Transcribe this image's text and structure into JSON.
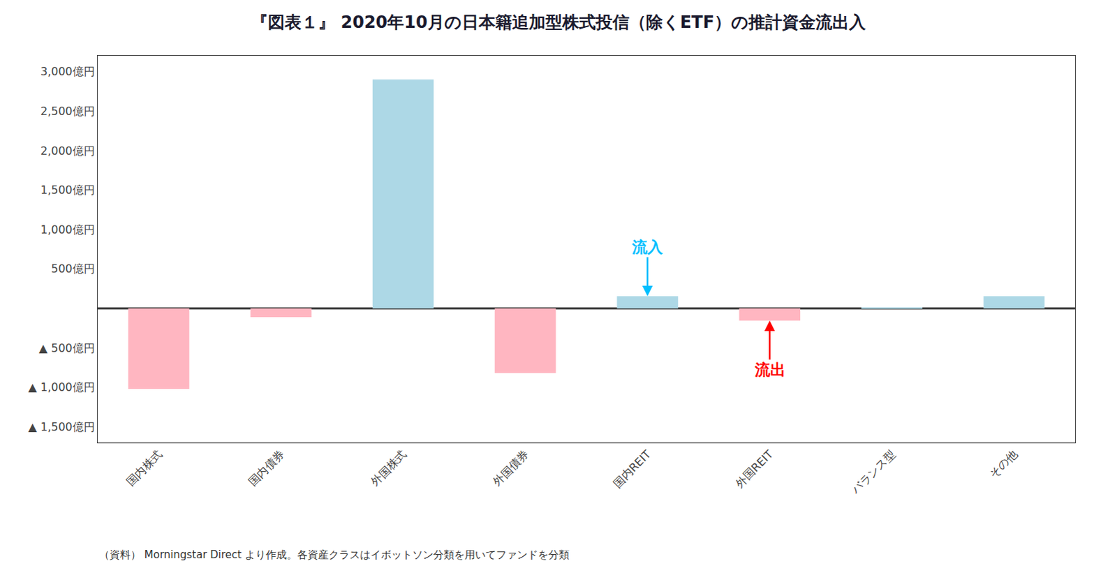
{
  "chart_data": {
    "type": "bar",
    "title": "『図表１』 2020年10月の日本籍追加型株式投信（除くETF）の推計資金流出入",
    "categories": [
      "国内株式",
      "国内債券",
      "外国株式",
      "外国債券",
      "国内REIT",
      "外国REIT",
      "バランス型",
      "その他"
    ],
    "values": [
      -1020,
      -110,
      2900,
      -820,
      155,
      -155,
      5,
      155
    ],
    "colors": [
      "#FFB6C1",
      "#FFB6C1",
      "#ADD8E6",
      "#FFB6C1",
      "#ADD8E6",
      "#FFB6C1",
      "#ADD8E6",
      "#ADD8E6"
    ],
    "ylim": [
      -1700,
      3200
    ],
    "yticks": [
      {
        "value": -1500,
        "label": "▲ 1,500億円"
      },
      {
        "value": -1000,
        "label": "▲ 1,000億円"
      },
      {
        "value": -500,
        "label": "▲ 500億円"
      },
      {
        "value": 500,
        "label": "500億円"
      },
      {
        "value": 1000,
        "label": "1,000億円"
      },
      {
        "value": 1500,
        "label": "1,500億円"
      },
      {
        "value": 2000,
        "label": "2,000億円"
      },
      {
        "value": 2500,
        "label": "2,500億円"
      },
      {
        "value": 3000,
        "label": "3,000億円"
      }
    ],
    "grid": false,
    "annotations": [
      {
        "text": "流入",
        "category": "国内REIT",
        "color": "#00BFFF"
      },
      {
        "text": "流出",
        "category": "外国REIT",
        "color": "#FF0000"
      },
      {
        "text": "（資料） Morningstar Direct より作成。各資産クラスはイボットソン分類を用いてファンドを分類"
      }
    ]
  }
}
